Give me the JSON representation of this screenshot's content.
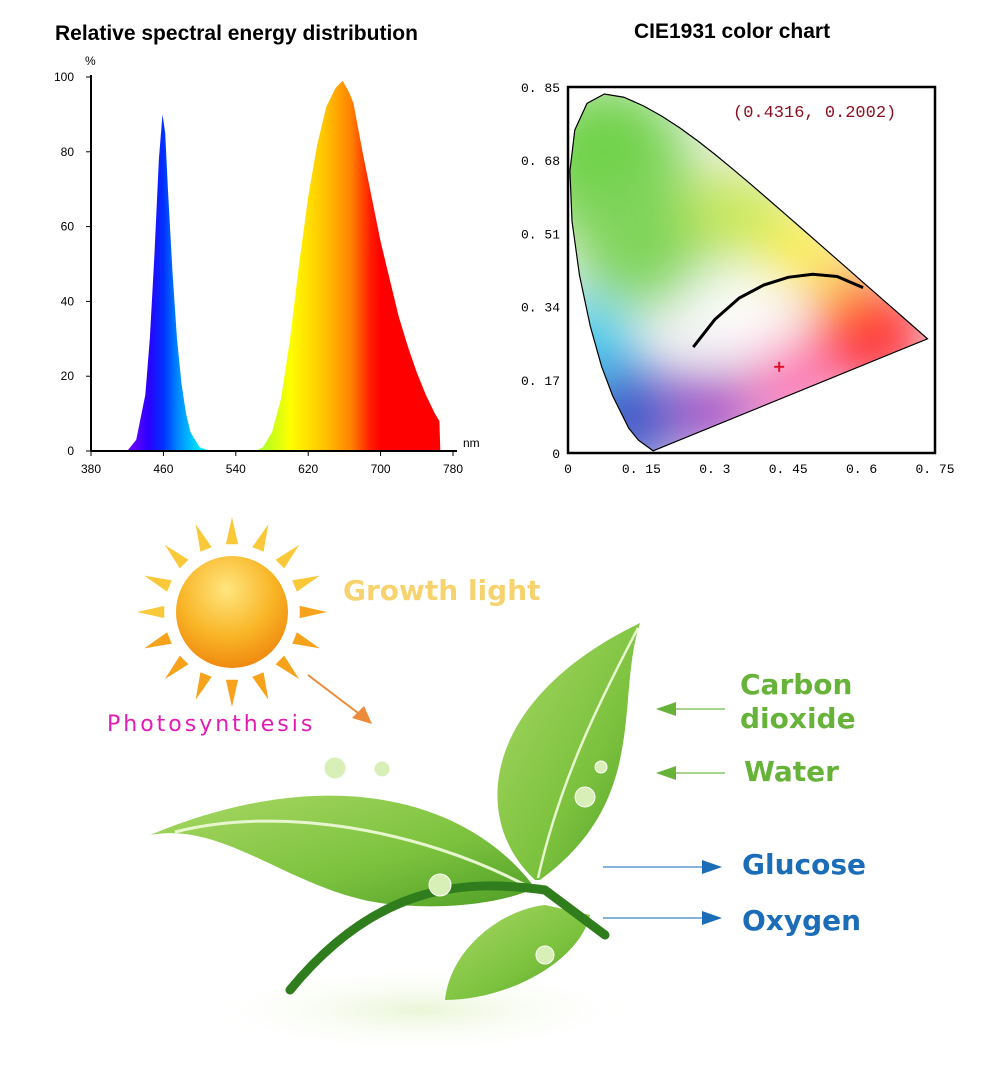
{
  "chart_data": [
    {
      "type": "area",
      "title": "Relative spectral energy distribution",
      "xlabel": "nm",
      "ylabel": "%",
      "xlim": [
        380,
        780
      ],
      "ylim": [
        0,
        100
      ],
      "xticks": [
        "380",
        "460",
        "540",
        "620",
        "700",
        "780"
      ],
      "yticks": [
        "0",
        "20",
        "40",
        "60",
        "80",
        "100"
      ],
      "grid": false,
      "fill": "spectral rainbow gradient by wavelength",
      "series": [
        {
          "x": [
            420,
            430,
            440,
            445,
            450,
            455,
            459,
            462,
            465,
            470,
            475,
            480,
            485,
            490,
            500,
            512
          ],
          "y": [
            0,
            3,
            15,
            30,
            52,
            78,
            90,
            85,
            70,
            48,
            30,
            18,
            10,
            5,
            1,
            0
          ]
        },
        {
          "x": [
            562,
            570,
            580,
            590,
            600,
            610,
            620,
            630,
            640,
            650,
            658,
            665,
            670,
            680,
            690,
            700,
            710,
            720,
            730,
            740,
            750,
            760,
            765,
            766
          ],
          "y": [
            0,
            1,
            5,
            14,
            30,
            50,
            68,
            82,
            92,
            97,
            99,
            96,
            93,
            80,
            68,
            56,
            46,
            36,
            28,
            21,
            15,
            10,
            8,
            0
          ]
        }
      ]
    },
    {
      "type": "scatter",
      "title": "CIE1931 color chart",
      "xlim": [
        0,
        0.75
      ],
      "ylim": [
        0,
        0.85
      ],
      "xticks": [
        "0",
        "0.15",
        "0.3",
        "0.45",
        "0.6",
        "0.75"
      ],
      "yticks": [
        "0",
        "0.17",
        "0.34",
        "0.51",
        "0.68",
        "0.85"
      ],
      "grid": false,
      "annotation": "(0.4316, 0.2002)",
      "point": {
        "x": 0.4316,
        "y": 0.2002,
        "color": "#e0102a"
      },
      "planckian_locus": {
        "x": [
          0.256,
          0.3,
          0.35,
          0.4,
          0.45,
          0.5,
          0.55,
          0.603
        ],
        "y": [
          0.246,
          0.31,
          0.36,
          0.39,
          0.408,
          0.415,
          0.41,
          0.384
        ]
      }
    }
  ],
  "infographic": {
    "growth_light": "Growth light",
    "photosynthesis": "Photosynthesis",
    "inputs": [
      "Carbon",
      "dioxide",
      "Water"
    ],
    "outputs": [
      "Glucose",
      "Oxygen"
    ],
    "colors": {
      "growth": "#f6d36e",
      "photo": "#e21bb5",
      "input": "#67b33a",
      "output": "#1a6db6",
      "sun": "#f7a21b"
    }
  }
}
